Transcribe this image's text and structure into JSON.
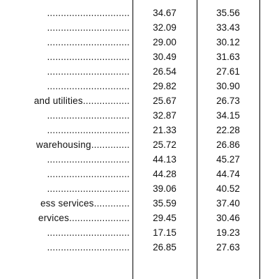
{
  "table": {
    "rows": [
      {
        "label": "",
        "dots": "",
        "a": "",
        "b": ""
      },
      {
        "label": "",
        "dots": "..............................",
        "a": "34.67",
        "b": "35.56"
      },
      {
        "label": "",
        "dots": "..............................",
        "a": "32.09",
        "b": "33.43"
      },
      {
        "label": "",
        "dots": "..............................",
        "a": "29.00",
        "b": "30.12"
      },
      {
        "label": "",
        "dots": "..............................",
        "a": "30.49",
        "b": "31.63"
      },
      {
        "label": "",
        "dots": "..............................",
        "a": "26.54",
        "b": "27.61"
      },
      {
        "label": "",
        "dots": "..............................",
        "a": "29.82",
        "b": "30.90"
      },
      {
        "label": "and utilities",
        "dots": ".................",
        "a": "25.67",
        "b": "26.73"
      },
      {
        "label": "",
        "dots": "..............................",
        "a": "32.87",
        "b": "34.15"
      },
      {
        "label": "",
        "dots": "..............................",
        "a": "21.33",
        "b": "22.28"
      },
      {
        "label": "warehousing",
        "dots": "..............",
        "a": "25.72",
        "b": "26.86"
      },
      {
        "label": "",
        "dots": "..............................",
        "a": "44.13",
        "b": "45.27"
      },
      {
        "label": "",
        "dots": "..............................",
        "a": "44.28",
        "b": "44.74"
      },
      {
        "label": "",
        "dots": "..............................",
        "a": "39.06",
        "b": "40.52"
      },
      {
        "label": "ess services",
        "dots": ".............",
        "a": "35.59",
        "b": "37.40"
      },
      {
        "label": "ervices",
        "dots": "......................",
        "a": "29.45",
        "b": "30.46"
      },
      {
        "label": "",
        "dots": "..............................",
        "a": "17.15",
        "b": "19.23"
      },
      {
        "label": "",
        "dots": "..............................",
        "a": "26.85",
        "b": "27.63"
      },
      {
        "label": "",
        "dots": "",
        "a": "",
        "b": ""
      }
    ]
  }
}
